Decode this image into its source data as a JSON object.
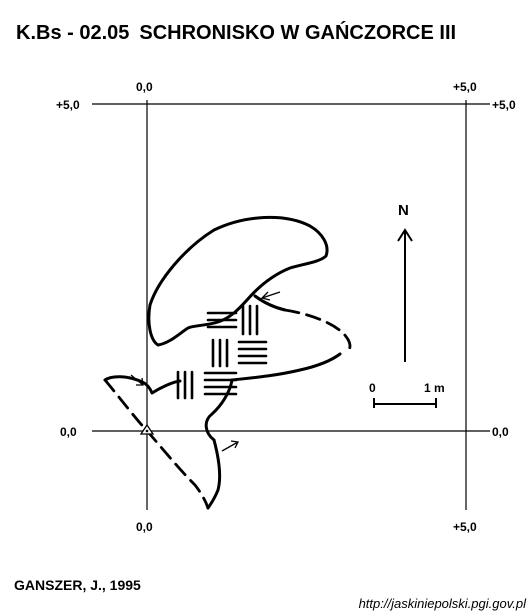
{
  "title": {
    "code": "K.Bs - 02.05",
    "name": "SCHRONISKO W GAŃCZORCE III"
  },
  "grid": {
    "top_left": "0,0",
    "top_right": "+5,0",
    "upper_left": "+5,0",
    "upper_right": "+5,0",
    "lower_left": "0,0",
    "lower_right": "0,0",
    "bottom_left": "0,0",
    "bottom_right": "+5,0"
  },
  "north": {
    "label": "N"
  },
  "scale": {
    "start": "0",
    "end": "1 m"
  },
  "author": "GANSZER, J., 1995",
  "source_url": "http://jaskiniepolski.pgi.gov.pl"
}
